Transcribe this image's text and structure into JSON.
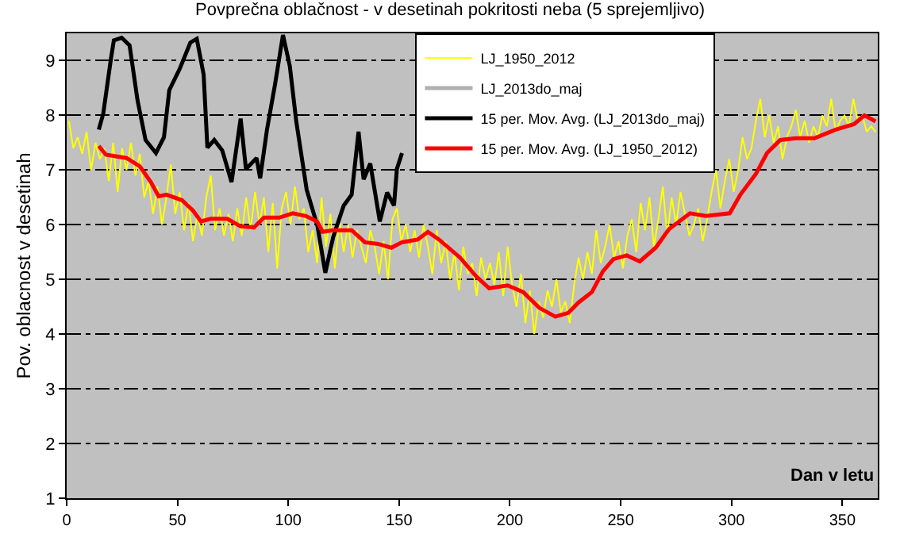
{
  "chart_data": {
    "type": "line",
    "title": "Povprečna oblačnost - v desetinah pokritosti neba (5 sprejemljivo)",
    "xlabel": "Dan v letu",
    "ylabel": "Pov. oblacnost v desetinah",
    "xlim": [
      0,
      366
    ],
    "xticks": [
      0,
      50,
      100,
      150,
      200,
      250,
      300,
      350
    ],
    "ylim": [
      1,
      9.5
    ],
    "yticks": [
      1,
      2,
      3,
      4,
      5,
      6,
      7,
      8,
      9
    ],
    "grid": "y",
    "legend": "top",
    "marker": "none",
    "series": [
      {
        "name": "LJ_1950_2012",
        "color": "#ffff00",
        "x": [
          1,
          3,
          5,
          7,
          9,
          11,
          13,
          15,
          17,
          19,
          21,
          23,
          25,
          27,
          29,
          31,
          33,
          35,
          37,
          39,
          41,
          43,
          45,
          47,
          49,
          51,
          53,
          55,
          57,
          59,
          61,
          63,
          65,
          67,
          69,
          71,
          73,
          75,
          77,
          79,
          81,
          83,
          85,
          87,
          89,
          91,
          93,
          95,
          97,
          99,
          101,
          103,
          105,
          107,
          109,
          111,
          113,
          115,
          117,
          119,
          121,
          123,
          125,
          127,
          129,
          131,
          133,
          135,
          137,
          139,
          141,
          143,
          145,
          147,
          149,
          151,
          153,
          155,
          157,
          159,
          161,
          163,
          165,
          167,
          169,
          171,
          173,
          175,
          177,
          179,
          181,
          183,
          185,
          187,
          189,
          191,
          193,
          195,
          197,
          199,
          201,
          203,
          205,
          207,
          209,
          211,
          213,
          215,
          217,
          219,
          221,
          223,
          225,
          227,
          229,
          231,
          233,
          235,
          237,
          239,
          241,
          243,
          245,
          247,
          249,
          251,
          253,
          255,
          257,
          259,
          261,
          263,
          265,
          267,
          269,
          271,
          273,
          275,
          277,
          279,
          281,
          283,
          285,
          287,
          289,
          291,
          293,
          295,
          297,
          299,
          301,
          303,
          305,
          307,
          309,
          311,
          313,
          315,
          317,
          319,
          321,
          323,
          325,
          327,
          329,
          331,
          333,
          335,
          337,
          339,
          341,
          343,
          345,
          347,
          349,
          351,
          353,
          355,
          357,
          359,
          361,
          363,
          365
        ],
        "values": [
          7.9,
          7.4,
          7.6,
          7.3,
          7.7,
          7.0,
          7.5,
          7.2,
          7.4,
          6.8,
          7.5,
          6.6,
          7.4,
          7.0,
          7.5,
          6.9,
          7.3,
          6.5,
          6.8,
          6.2,
          6.7,
          6.0,
          6.5,
          7.1,
          6.2,
          6.6,
          5.9,
          6.4,
          5.7,
          6.2,
          5.8,
          6.5,
          6.9,
          5.9,
          6.3,
          5.8,
          6.2,
          5.7,
          6.3,
          5.8,
          6.5,
          5.9,
          6.6,
          6.0,
          6.5,
          5.5,
          6.4,
          5.2,
          6.3,
          6.6,
          6.0,
          6.7,
          6.1,
          6.3,
          5.5,
          5.9,
          5.3,
          6.5,
          5.6,
          6.2,
          5.2,
          6.1,
          5.5,
          6.0,
          5.4,
          5.9,
          5.6,
          5.3,
          5.9,
          5.6,
          5.1,
          5.7,
          5.0,
          6.1,
          6.3,
          5.7,
          6.0,
          5.5,
          5.9,
          5.4,
          6.0,
          5.6,
          5.1,
          5.9,
          5.3,
          5.7,
          5.0,
          5.5,
          4.8,
          5.6,
          5.1,
          5.3,
          4.7,
          5.4,
          5.0,
          5.3,
          4.9,
          5.5,
          4.7,
          5.6,
          4.9,
          4.5,
          5.1,
          4.2,
          4.8,
          4.0,
          4.6,
          4.3,
          4.8,
          4.5,
          5.0,
          4.4,
          4.6,
          4.2,
          4.9,
          5.4,
          5.0,
          5.5,
          5.1,
          5.9,
          5.3,
          5.6,
          6.0,
          5.4,
          5.7,
          5.2,
          5.8,
          6.1,
          5.5,
          6.4,
          5.9,
          6.5,
          5.6,
          6.1,
          6.7,
          5.8,
          6.5,
          6.0,
          6.6,
          6.2,
          5.8,
          6.0,
          6.3,
          5.7,
          6.1,
          6.6,
          7.0,
          6.3,
          6.8,
          7.2,
          6.6,
          7.0,
          7.6,
          7.2,
          7.4,
          7.9,
          8.3,
          7.6,
          8.0,
          7.5,
          7.8,
          7.2,
          7.6,
          7.8,
          8.1,
          7.6,
          7.9,
          7.5,
          7.8,
          7.6,
          8.0,
          7.8,
          8.3,
          7.7,
          7.9,
          8.0,
          7.8,
          8.3,
          7.9,
          8.0,
          7.7,
          7.8,
          7.7
        ]
      },
      {
        "name": "LJ_2013do_maj",
        "color": "#b0b0b0"
      },
      {
        "name": "15 per. Mov. Avg. (LJ_2013do_maj)",
        "color": "#000000",
        "x": [
          14.5,
          16.5,
          20,
          21.3,
          24.8,
          28.4,
          32,
          35.6,
          40.3,
          43.9,
          46.3,
          51,
          55.8,
          58.7,
          61.8,
          63.5,
          66.6,
          70.2,
          74.4,
          78.5,
          80.9,
          85.7,
          87.3,
          90.4,
          94,
          97.6,
          100.7,
          103.6,
          108.3,
          113.2,
          116.7,
          120.3,
          125,
          128.6,
          131.7,
          134,
          137,
          141.3,
          144.6,
          147.7,
          149,
          151.3
        ],
        "values": [
          7.74,
          8.03,
          9.04,
          9.37,
          9.42,
          9.28,
          8.27,
          7.55,
          7.31,
          7.6,
          8.46,
          8.85,
          9.33,
          9.4,
          8.75,
          7.41,
          7.55,
          7.36,
          6.78,
          7.94,
          7.02,
          7.22,
          6.85,
          7.74,
          8.56,
          9.47,
          8.9,
          7.89,
          6.64,
          5.97,
          5.12,
          5.78,
          6.35,
          6.55,
          7.7,
          6.83,
          7.12,
          6.06,
          6.59,
          6.35,
          7.02,
          7.31
        ]
      },
      {
        "name": "15 per. Mov. Avg. (LJ_1950_2012)",
        "color": "#ff0000",
        "x": [
          14.5,
          17.7,
          27,
          33,
          38,
          41.5,
          45,
          52,
          57,
          60.6,
          65,
          72.5,
          78.5,
          84.5,
          89,
          96,
          102,
          108,
          113,
          115.5,
          120,
          128.6,
          134.6,
          140.5,
          146.5,
          151.3,
          158.4,
          163,
          168,
          177.5,
          184.7,
          190.6,
          199,
          206,
          213.3,
          220.5,
          226.4,
          231,
          237,
          242,
          246.7,
          252.7,
          258.6,
          265.8,
          271.8,
          281.3,
          288.5,
          299.2,
          304,
          311,
          316,
          322,
          329,
          337.4,
          347,
          355.3,
          360,
          365
        ],
        "values": [
          7.44,
          7.28,
          7.22,
          7.07,
          6.78,
          6.52,
          6.55,
          6.45,
          6.26,
          6.06,
          6.11,
          6.11,
          5.97,
          5.95,
          6.13,
          6.13,
          6.21,
          6.16,
          6.06,
          5.87,
          5.9,
          5.9,
          5.68,
          5.65,
          5.58,
          5.68,
          5.73,
          5.87,
          5.73,
          5.4,
          5.06,
          4.84,
          4.89,
          4.77,
          4.48,
          4.32,
          4.39,
          4.58,
          4.77,
          5.15,
          5.37,
          5.44,
          5.33,
          5.58,
          5.92,
          6.21,
          6.16,
          6.21,
          6.55,
          6.93,
          7.31,
          7.55,
          7.58,
          7.58,
          7.74,
          7.84,
          8.0,
          7.89
        ]
      }
    ]
  }
}
